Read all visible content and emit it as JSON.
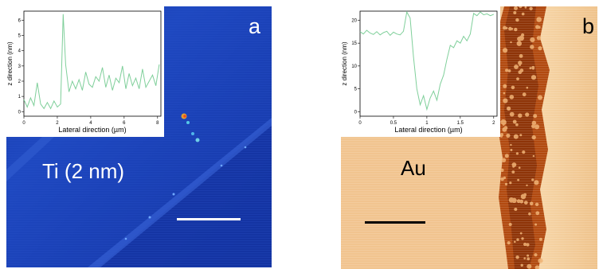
{
  "panel_a": {
    "letter": "a",
    "label": "Ti (2 nm)",
    "inset": {
      "type": "line",
      "xlabel": "Lateral direction (µm)",
      "ylabel": "z direction (nm)",
      "x_ticks": [
        "0",
        "2",
        "4",
        "6",
        "8"
      ],
      "y_ticks": [
        "0",
        "1",
        "2",
        "3",
        "4",
        "5",
        "6"
      ],
      "xlim": [
        0,
        8.2
      ],
      "ylim": [
        -0.3,
        6.6
      ],
      "line_color": "#7fcf9a",
      "x": [
        0,
        0.2,
        0.4,
        0.6,
        0.8,
        1.0,
        1.2,
        1.4,
        1.6,
        1.8,
        2.0,
        2.2,
        2.35,
        2.5,
        2.7,
        2.9,
        3.1,
        3.3,
        3.5,
        3.7,
        3.9,
        4.1,
        4.3,
        4.5,
        4.7,
        4.9,
        5.1,
        5.3,
        5.5,
        5.7,
        5.9,
        6.1,
        6.3,
        6.5,
        6.7,
        6.9,
        7.1,
        7.3,
        7.5,
        7.7,
        7.9,
        8.1
      ],
      "y": [
        0.8,
        0.3,
        0.9,
        0.4,
        1.9,
        0.5,
        0.2,
        0.6,
        0.2,
        0.7,
        0.3,
        0.5,
        6.4,
        3.1,
        1.3,
        2.0,
        1.5,
        2.1,
        1.4,
        2.6,
        1.8,
        1.6,
        2.3,
        2.0,
        2.9,
        1.6,
        2.4,
        1.4,
        2.2,
        1.9,
        3.0,
        1.5,
        2.5,
        1.7,
        2.2,
        1.5,
        2.8,
        1.6,
        2.0,
        2.4,
        1.7,
        3.1
      ]
    }
  },
  "panel_b": {
    "letter": "b",
    "label": "Au",
    "inset": {
      "type": "line",
      "xlabel": "Lateral direction (µm)",
      "ylabel": "z direction (nm)",
      "x_ticks": [
        "0",
        "0.5",
        "1",
        "1.5",
        "2"
      ],
      "y_ticks": [
        "0",
        "5",
        "10",
        "15",
        "20"
      ],
      "xlim": [
        0,
        2.05
      ],
      "ylim": [
        -1,
        22
      ],
      "line_color": "#7fcf9a",
      "x": [
        0,
        0.05,
        0.1,
        0.15,
        0.2,
        0.25,
        0.3,
        0.35,
        0.4,
        0.45,
        0.5,
        0.55,
        0.6,
        0.65,
        0.7,
        0.75,
        0.8,
        0.85,
        0.9,
        0.95,
        1.0,
        1.05,
        1.1,
        1.15,
        1.2,
        1.25,
        1.3,
        1.35,
        1.4,
        1.45,
        1.5,
        1.55,
        1.6,
        1.65,
        1.7,
        1.75,
        1.8,
        1.85,
        1.9,
        1.95,
        2.0
      ],
      "y": [
        17.5,
        17.0,
        17.8,
        17.2,
        16.9,
        17.5,
        16.8,
        17.3,
        17.6,
        16.7,
        17.4,
        17.0,
        16.8,
        17.6,
        21.8,
        20.5,
        12.0,
        5.0,
        1.5,
        3.5,
        0.5,
        3.0,
        4.5,
        2.5,
        6.0,
        8.0,
        11.5,
        14.5,
        14.0,
        15.5,
        15.0,
        16.5,
        15.5,
        17.0,
        21.5,
        21.0,
        21.8,
        21.2,
        21.4,
        21.0,
        21.3
      ]
    }
  },
  "colors": {
    "ti_blue": "#1a3fb0",
    "au_tan": "#f1c48f",
    "boundary_brown": "#b24a10",
    "profile_line": "#7fcf9a"
  }
}
